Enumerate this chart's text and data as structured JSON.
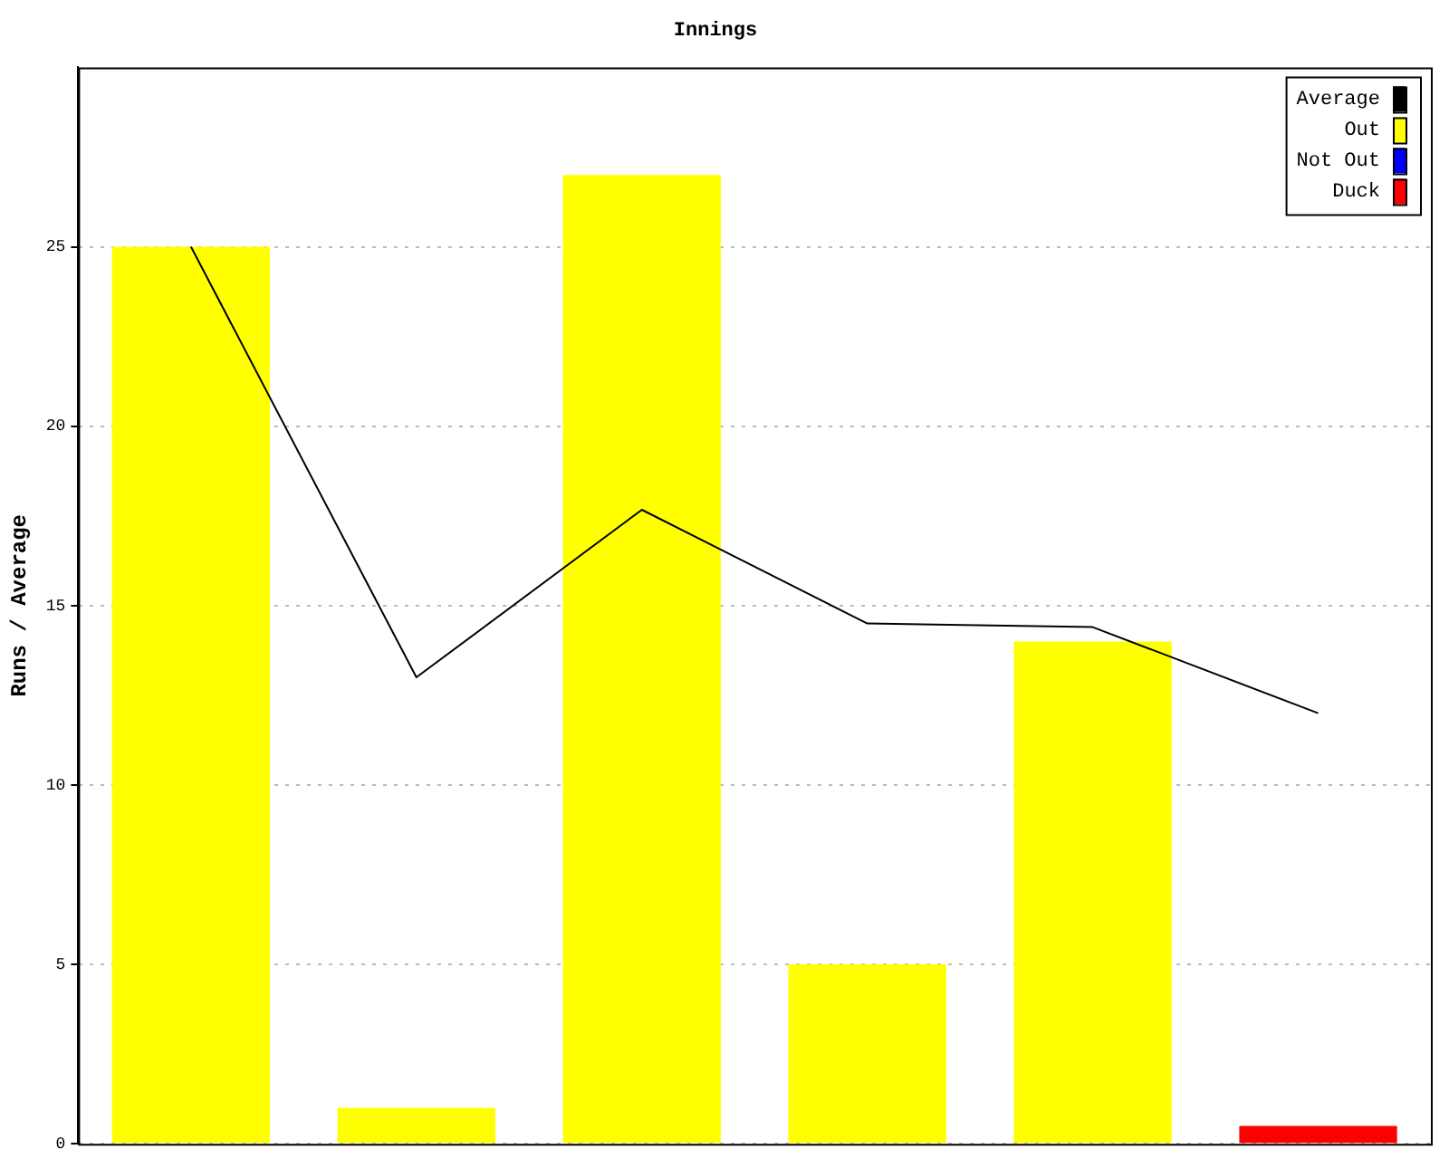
{
  "chart_data": {
    "type": "bar",
    "title": "Innings",
    "ylabel": "Runs / Average",
    "categories": [
      null,
      null,
      null,
      null,
      null,
      null
    ],
    "series": [
      {
        "name": "Average",
        "type": "line",
        "color": "#000000",
        "values": [
          25,
          13,
          17.67,
          14.5,
          14.4,
          12
        ]
      },
      {
        "name": "Out",
        "color": "#ffff00",
        "values": [
          25,
          1,
          27,
          5,
          14,
          null
        ]
      },
      {
        "name": "Not Out",
        "color": "#0000ff",
        "values": [
          null,
          null,
          null,
          null,
          null,
          null
        ]
      },
      {
        "name": "Duck",
        "color": "#ff0000",
        "values": [
          null,
          null,
          null,
          null,
          null,
          0.5
        ]
      }
    ],
    "ylim": [
      0,
      30
    ],
    "yticks": [
      0,
      5,
      10,
      15,
      20,
      25
    ],
    "grid": "y",
    "legend": "top right",
    "marker": "none",
    "line_style": "solid"
  }
}
